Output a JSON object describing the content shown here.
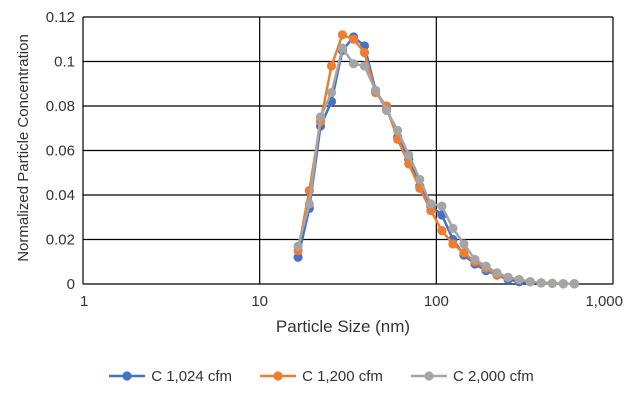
{
  "chart_data": {
    "type": "line",
    "x_scale": "log",
    "xlabel": "Particle Size (nm)",
    "ylabel": "Normalized Particle Concentration",
    "xlim": [
      1,
      1000
    ],
    "ylim": [
      0,
      0.12
    ],
    "x_ticks": [
      1,
      10,
      100,
      1000
    ],
    "x_tick_labels": [
      "1",
      "10",
      "100",
      "1,000"
    ],
    "y_ticks": [
      0,
      0.02,
      0.04,
      0.06,
      0.08,
      0.1,
      0.12
    ],
    "y_tick_labels": [
      "0",
      "0.02",
      "0.04",
      "0.06",
      "0.08",
      "0.1",
      "0.12"
    ],
    "grid": true,
    "legend_position": "bottom",
    "x": [
      16.5,
      19.1,
      22.1,
      25.5,
      29.4,
      34.0,
      39.2,
      45.3,
      52.3,
      60.4,
      69.8,
      80.6,
      93.1,
      107.5,
      124.1,
      143.3,
      165.5,
      191.1,
      220.7,
      254.8,
      294.3,
      339.8,
      392.4,
      453.2,
      523.3,
      604.3
    ],
    "series": [
      {
        "name": "C 1,024 cfm",
        "color": "#4472C4",
        "values": [
          0.012,
          0.034,
          0.071,
          0.082,
          0.105,
          0.111,
          0.107,
          0.087,
          0.079,
          0.066,
          0.056,
          0.044,
          0.035,
          0.031,
          0.02,
          0.013,
          0.009,
          0.006,
          0.004,
          0.002,
          0.001,
          0.001,
          0.0005,
          0.0003,
          0.0001,
          0.0001
        ]
      },
      {
        "name": "C 1,200 cfm",
        "color": "#ED7D31",
        "values": [
          0.015,
          0.042,
          0.073,
          0.098,
          0.112,
          0.11,
          0.104,
          0.086,
          0.08,
          0.065,
          0.054,
          0.043,
          0.033,
          0.024,
          0.018,
          0.014,
          0.01,
          0.007,
          0.004,
          0.003,
          0.002,
          0.001,
          0.0005,
          0.0003,
          0.0001,
          0.0001
        ]
      },
      {
        "name": "C 2,000 cfm",
        "color": "#A5A5A5",
        "values": [
          0.017,
          0.036,
          0.075,
          0.086,
          0.106,
          0.099,
          0.098,
          0.087,
          0.078,
          0.069,
          0.058,
          0.047,
          0.036,
          0.035,
          0.025,
          0.018,
          0.011,
          0.008,
          0.005,
          0.003,
          0.002,
          0.001,
          0.0005,
          0.0003,
          0.0001,
          0.0001
        ]
      }
    ]
  }
}
